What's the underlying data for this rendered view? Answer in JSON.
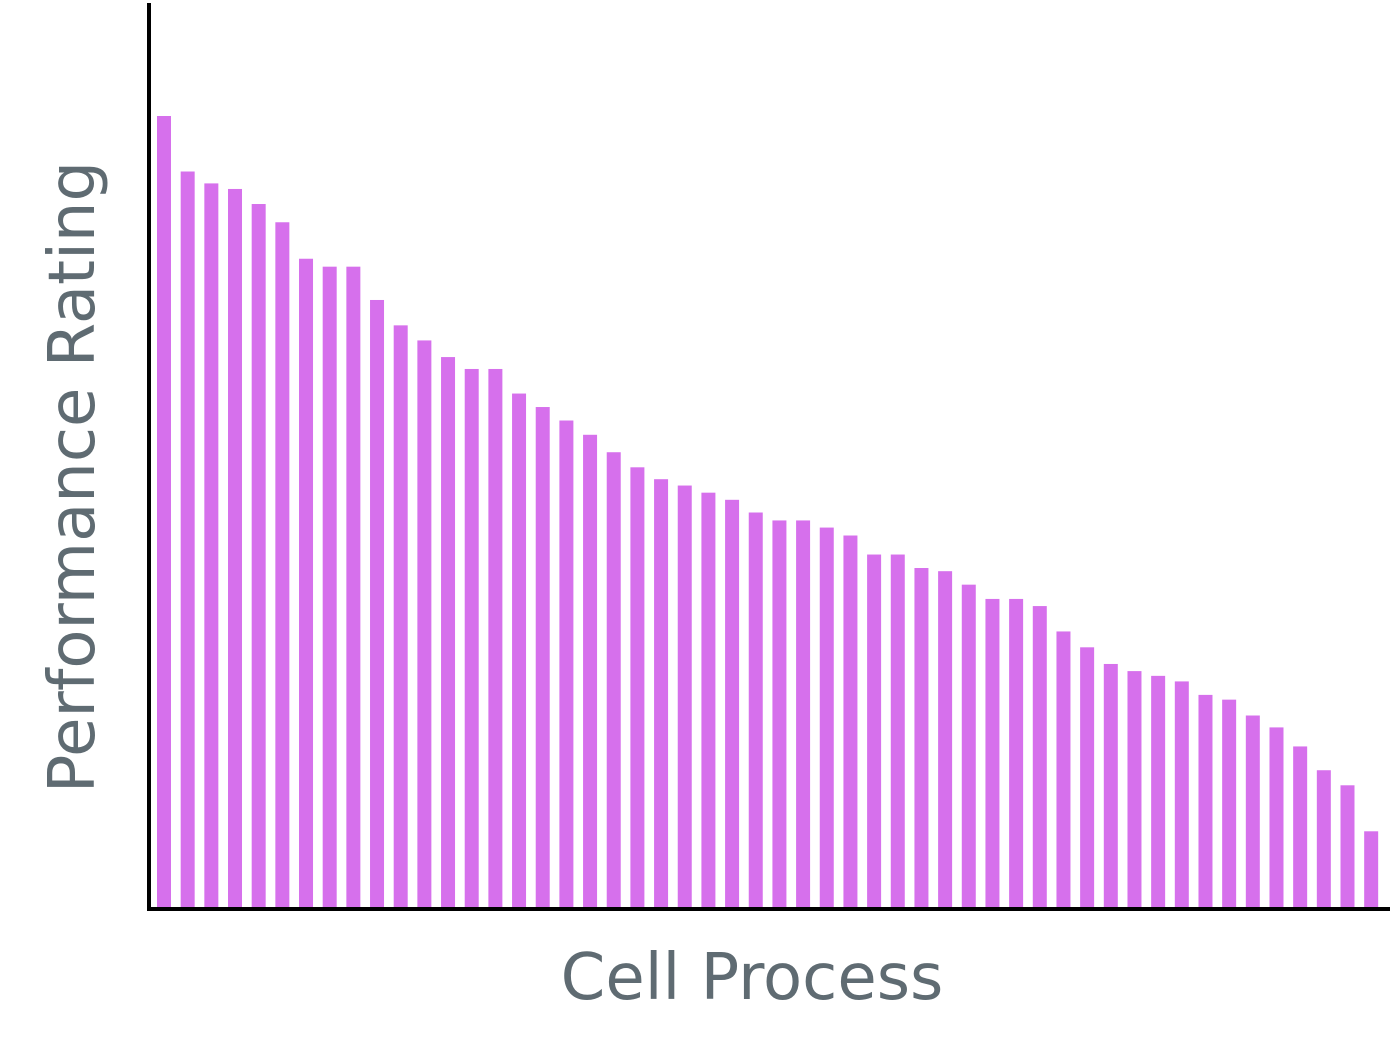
{
  "chart_data": {
    "type": "bar",
    "title": "",
    "xlabel": "Cell Process",
    "ylabel": "Performance Rating",
    "x_tick_labels_shown": false,
    "y_tick_labels_shown": false,
    "grid": false,
    "legend": "none",
    "ylim": [
      0,
      100
    ],
    "series": [
      {
        "values": [
          100.0,
          93.0,
          91.5,
          90.8,
          88.9,
          86.6,
          82.0,
          81.0,
          81.0,
          76.8,
          73.6,
          71.7,
          69.6,
          68.1,
          68.1,
          65.0,
          63.3,
          61.6,
          59.8,
          57.6,
          55.7,
          54.2,
          53.4,
          52.5,
          51.6,
          50.0,
          49.0,
          49.0,
          48.1,
          47.1,
          44.7,
          44.7,
          43.0,
          42.6,
          40.9,
          39.1,
          39.1,
          38.2,
          35.0,
          33.0,
          30.9,
          30.0,
          29.4,
          28.7,
          27.0,
          26.4,
          24.4,
          22.9,
          20.5,
          17.5,
          15.6,
          9.8
        ]
      }
    ]
  },
  "colors": {
    "bar": "#d670ec",
    "axis": "#000000",
    "axis_title": "#5f6b72",
    "background": "#ffffff"
  }
}
